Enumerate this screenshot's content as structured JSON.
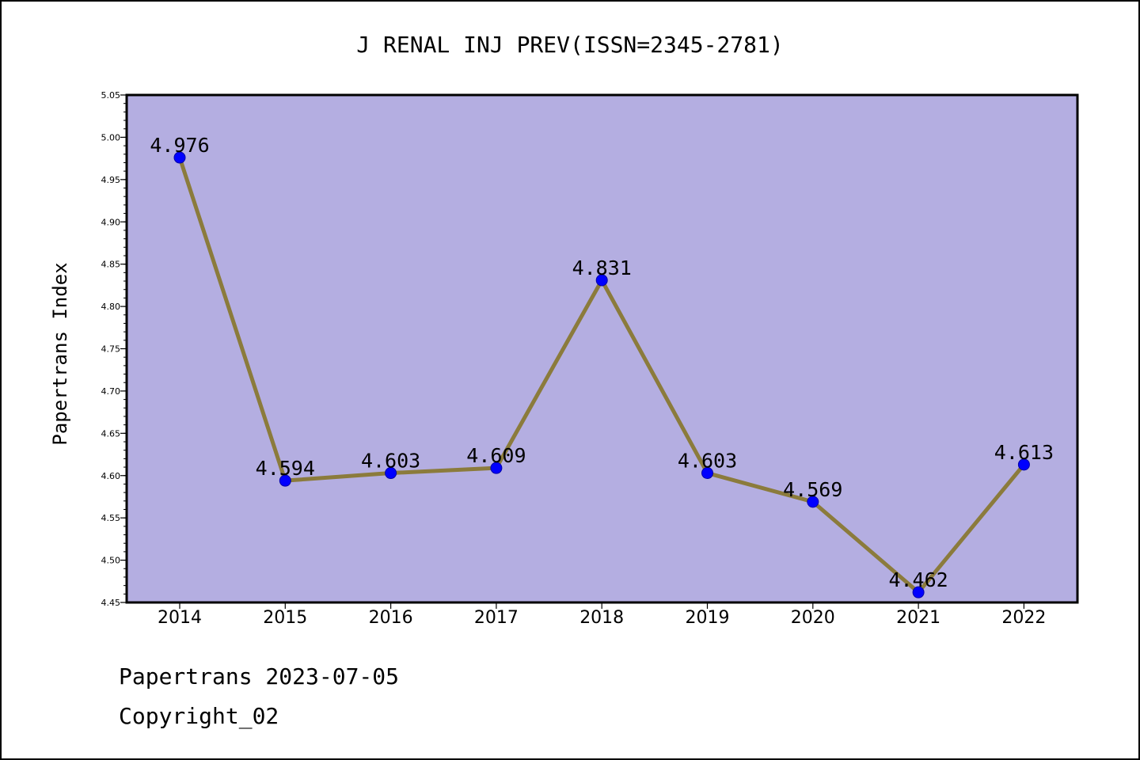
{
  "chart_data": {
    "type": "line",
    "title": "J RENAL INJ PREV(ISSN=2345-2781)",
    "ylabel": "Papertrans Index",
    "xlabel": "",
    "categories": [
      "2014",
      "2015",
      "2016",
      "2017",
      "2018",
      "2019",
      "2020",
      "2021",
      "2022"
    ],
    "series": [
      {
        "values": [
          4.976,
          4.594,
          4.603,
          4.609,
          4.831,
          4.603,
          4.569,
          4.462,
          4.613
        ]
      }
    ],
    "data_labels": [
      "4.976",
      "4.594",
      "4.603",
      "4.609",
      "4.831",
      "4.603",
      "4.569",
      "4.462",
      "4.613"
    ],
    "ylim": [
      4.45,
      5.05
    ],
    "yticks": [
      "4.45",
      "4.50",
      "4.55",
      "4.60",
      "4.65",
      "4.70",
      "4.75",
      "4.80",
      "4.85",
      "4.90",
      "4.95",
      "5.00",
      "5.05"
    ],
    "grid": false,
    "legend": "none",
    "colors": {
      "plot_background": "#b4aee1",
      "line": "#8b7b3c",
      "marker": "#0000ff"
    }
  },
  "footer": {
    "line1": "Papertrans 2023-07-05",
    "line2": "Copyright_02"
  }
}
